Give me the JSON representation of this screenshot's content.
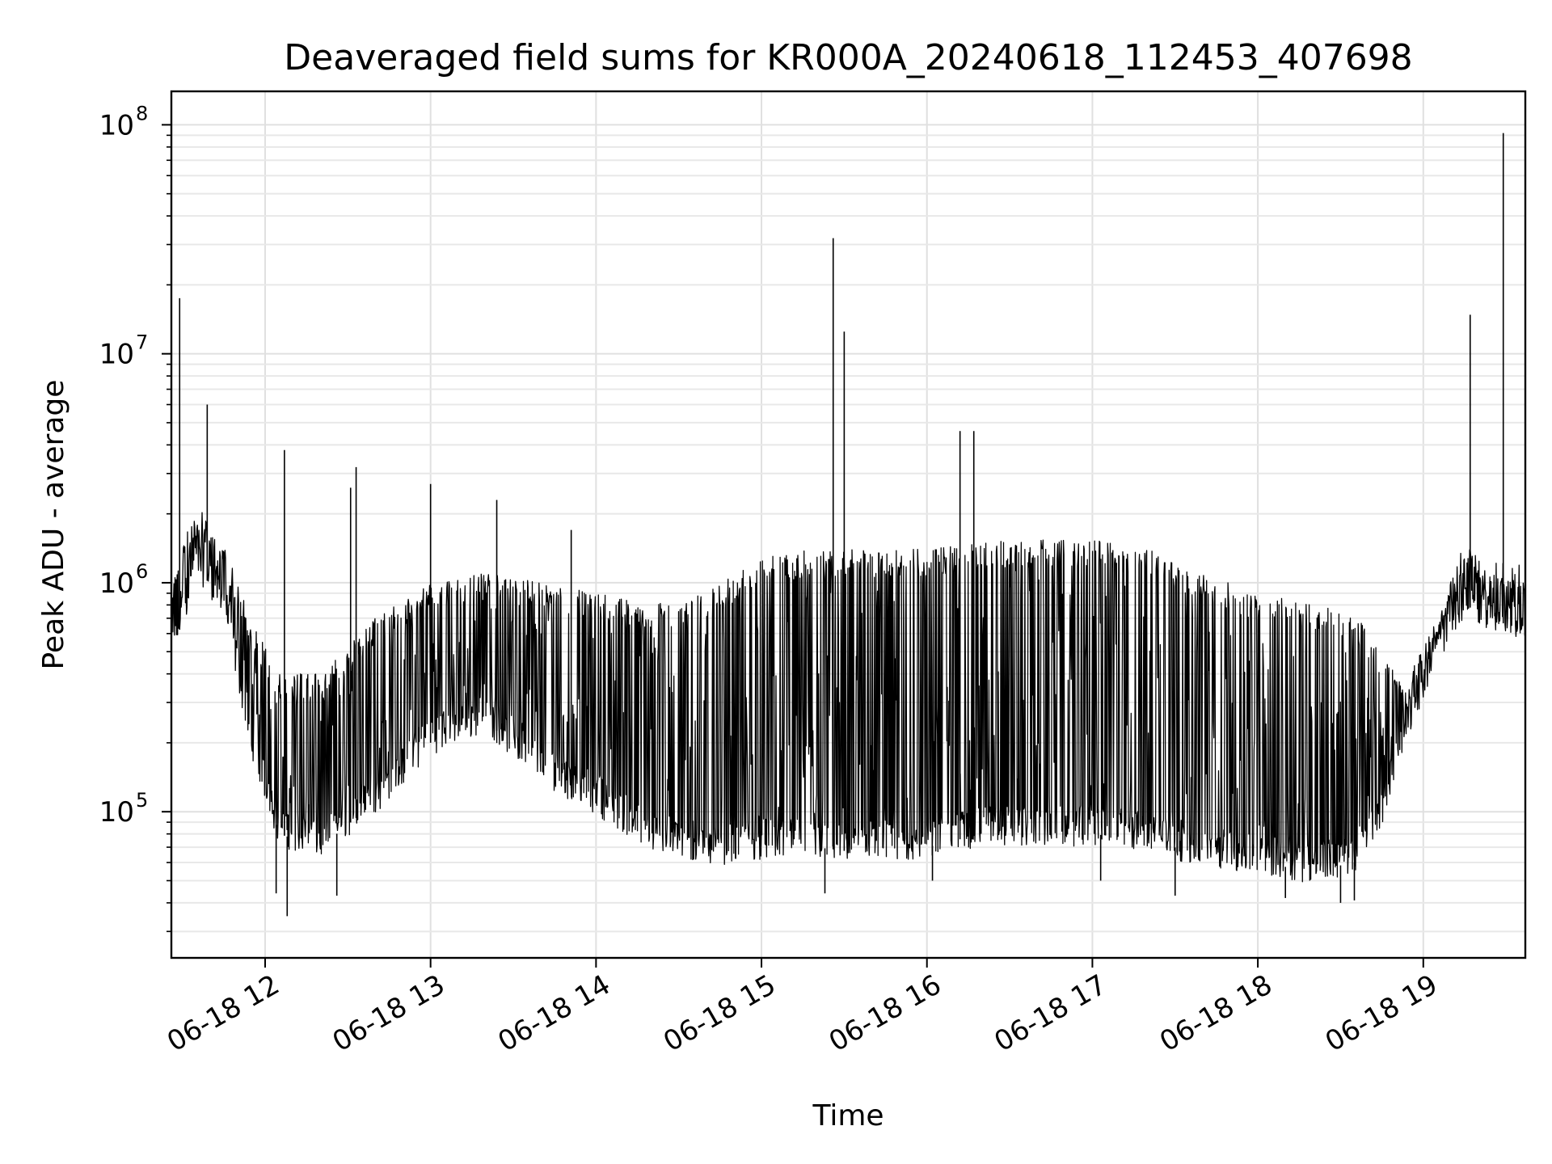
{
  "chart_data": {
    "type": "line",
    "title": "Deaveraged field sums for KR000A_20240618_112453_407698",
    "xlabel": "Time",
    "ylabel": "Peak ADU - average",
    "yscale": "log",
    "ylim": [
      23000,
      140000000
    ],
    "xlim": [
      "2024-06-18 11:26",
      "2024-06-18 19:37"
    ],
    "grid": true,
    "line_color": "#000000",
    "x_ticks": [
      {
        "value": "2024-06-18 12:00",
        "label": "06-18 12"
      },
      {
        "value": "2024-06-18 13:00",
        "label": "06-18 13"
      },
      {
        "value": "2024-06-18 14:00",
        "label": "06-18 14"
      },
      {
        "value": "2024-06-18 15:00",
        "label": "06-18 15"
      },
      {
        "value": "2024-06-18 16:00",
        "label": "06-18 16"
      },
      {
        "value": "2024-06-18 17:00",
        "label": "06-18 17"
      },
      {
        "value": "2024-06-18 18:00",
        "label": "06-18 18"
      },
      {
        "value": "2024-06-18 19:00",
        "label": "06-18 19"
      }
    ],
    "y_ticks": [
      {
        "value": 100000,
        "label": "10",
        "exp": "5"
      },
      {
        "value": 1000000,
        "label": "10",
        "exp": "6"
      },
      {
        "value": 10000000,
        "label": "10",
        "exp": "7"
      },
      {
        "value": 100000000,
        "label": "10",
        "exp": "8"
      }
    ],
    "series": [
      {
        "baseline_lower": [
          [
            "2024-06-18 11:26",
            450000
          ],
          [
            "2024-06-18 11:35",
            1200000
          ],
          [
            "2024-06-18 11:45",
            800000
          ],
          [
            "2024-06-18 11:55",
            200000
          ],
          [
            "2024-06-18 12:05",
            80000
          ],
          [
            "2024-06-18 12:20",
            70000
          ],
          [
            "2024-06-18 12:40",
            110000
          ],
          [
            "2024-06-18 13:00",
            200000
          ],
          [
            "2024-06-18 13:20",
            250000
          ],
          [
            "2024-06-18 13:40",
            150000
          ],
          [
            "2024-06-18 14:00",
            110000
          ],
          [
            "2024-06-18 14:20",
            75000
          ],
          [
            "2024-06-18 14:40",
            65000
          ],
          [
            "2024-06-18 15:00",
            70000
          ],
          [
            "2024-06-18 15:20",
            70000
          ],
          [
            "2024-06-18 15:40",
            65000
          ],
          [
            "2024-06-18 16:00",
            70000
          ],
          [
            "2024-06-18 16:20",
            80000
          ],
          [
            "2024-06-18 16:40",
            80000
          ],
          [
            "2024-06-18 17:00",
            80000
          ],
          [
            "2024-06-18 17:20",
            75000
          ],
          [
            "2024-06-18 17:40",
            65000
          ],
          [
            "2024-06-18 18:00",
            60000
          ],
          [
            "2024-06-18 18:20",
            55000
          ],
          [
            "2024-06-18 18:35",
            60000
          ],
          [
            "2024-06-18 18:45",
            100000
          ],
          [
            "2024-06-18 18:55",
            250000
          ],
          [
            "2024-06-18 19:05",
            500000
          ],
          [
            "2024-06-18 19:15",
            800000
          ],
          [
            "2024-06-18 19:25",
            700000
          ],
          [
            "2024-06-18 19:37",
            600000
          ]
        ],
        "envelope_upper": [
          [
            "2024-06-18 11:26",
            1000000
          ],
          [
            "2024-06-18 11:35",
            2200000
          ],
          [
            "2024-06-18 11:45",
            1500000
          ],
          [
            "2024-06-18 11:55",
            700000
          ],
          [
            "2024-06-18 12:05",
            400000
          ],
          [
            "2024-06-18 12:20",
            400000
          ],
          [
            "2024-06-18 12:40",
            700000
          ],
          [
            "2024-06-18 13:00",
            1000000
          ],
          [
            "2024-06-18 13:20",
            1100000
          ],
          [
            "2024-06-18 13:40",
            1000000
          ],
          [
            "2024-06-18 14:00",
            900000
          ],
          [
            "2024-06-18 14:20",
            800000
          ],
          [
            "2024-06-18 14:40",
            900000
          ],
          [
            "2024-06-18 15:00",
            1300000
          ],
          [
            "2024-06-18 15:20",
            1400000
          ],
          [
            "2024-06-18 15:40",
            1400000
          ],
          [
            "2024-06-18 16:00",
            1400000
          ],
          [
            "2024-06-18 16:20",
            1500000
          ],
          [
            "2024-06-18 16:40",
            1550000
          ],
          [
            "2024-06-18 17:00",
            1550000
          ],
          [
            "2024-06-18 17:20",
            1400000
          ],
          [
            "2024-06-18 17:40",
            1100000
          ],
          [
            "2024-06-18 18:00",
            900000
          ],
          [
            "2024-06-18 18:20",
            800000
          ],
          [
            "2024-06-18 18:35",
            750000
          ],
          [
            "2024-06-18 18:45",
            500000
          ],
          [
            "2024-06-18 18:55",
            400000
          ],
          [
            "2024-06-18 19:05",
            700000
          ],
          [
            "2024-06-18 19:15",
            1500000
          ],
          [
            "2024-06-18 19:25",
            1300000
          ],
          [
            "2024-06-18 19:37",
            1200000
          ]
        ],
        "spikes": [
          [
            "2024-06-18 11:29",
            17500000
          ],
          [
            "2024-06-18 11:39",
            6000000
          ],
          [
            "2024-06-18 12:07",
            3800000
          ],
          [
            "2024-06-18 12:31",
            2600000
          ],
          [
            "2024-06-18 12:33",
            3200000
          ],
          [
            "2024-06-18 13:00",
            2700000
          ],
          [
            "2024-06-18 13:24",
            2300000
          ],
          [
            "2024-06-18 13:51",
            1700000
          ],
          [
            "2024-06-18 15:26",
            32000000
          ],
          [
            "2024-06-18 15:30",
            12500000
          ],
          [
            "2024-06-18 16:12",
            4600000
          ],
          [
            "2024-06-18 16:17",
            4600000
          ],
          [
            "2024-06-18 19:17",
            14800000
          ],
          [
            "2024-06-18 19:29",
            92000000
          ]
        ],
        "dips": [
          [
            "2024-06-18 12:08",
            35000
          ],
          [
            "2024-06-18 12:04",
            44000
          ],
          [
            "2024-06-18 12:26",
            43000
          ],
          [
            "2024-06-18 15:23",
            44000
          ],
          [
            "2024-06-18 16:02",
            50000
          ],
          [
            "2024-06-18 17:03",
            50000
          ],
          [
            "2024-06-18 17:30",
            43000
          ],
          [
            "2024-06-18 18:10",
            42000
          ],
          [
            "2024-06-18 18:30",
            40000
          ],
          [
            "2024-06-18 18:35",
            41000
          ]
        ]
      }
    ]
  }
}
